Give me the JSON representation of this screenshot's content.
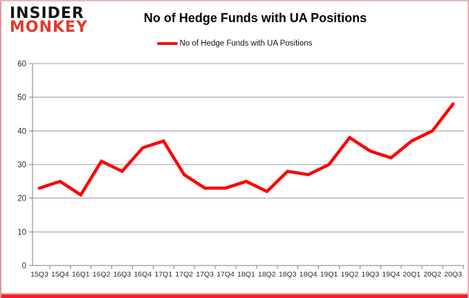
{
  "logo": {
    "line1": "INSIDER",
    "line2": "MONKEY"
  },
  "header": {
    "title": "No of Hedge Funds with UA Positions"
  },
  "legend": {
    "label": "No of Hedge Funds with UA Positions"
  },
  "chart_data": {
    "type": "line",
    "title": "No of Hedge Funds with UA Positions",
    "categories": [
      "15Q3",
      "15Q4",
      "16Q1",
      "16Q2",
      "16Q3",
      "16Q4",
      "17Q1",
      "17Q2",
      "17Q3",
      "17Q4",
      "18Q1",
      "18Q2",
      "18Q3",
      "18Q4",
      "19Q1",
      "19Q2",
      "19Q3",
      "19Q4",
      "20Q1",
      "20Q2",
      "20Q3"
    ],
    "series": [
      {
        "name": "No of Hedge Funds with UA Positions",
        "color": "#ff0000",
        "values": [
          23,
          25,
          21,
          31,
          28,
          35,
          37,
          27,
          23,
          23,
          25,
          22,
          28,
          27,
          30,
          38,
          34,
          32,
          37,
          40,
          48
        ]
      }
    ],
    "xlabel": "",
    "ylabel": "",
    "ylim": [
      0,
      60
    ],
    "yticks": [
      0,
      10,
      20,
      30,
      40,
      50,
      60
    ],
    "grid": true,
    "legend_position": "top-center"
  },
  "colors": {
    "series_red": "#ff0000",
    "grid": "#9b9b9b",
    "axis": "#7f7f7f",
    "tick_text": "#2b2b2b",
    "logo_black": "#141414",
    "logo_red": "#e13b2f",
    "frame_pink": "#efaab0",
    "frame_bottom_red": "#ee1c25"
  }
}
